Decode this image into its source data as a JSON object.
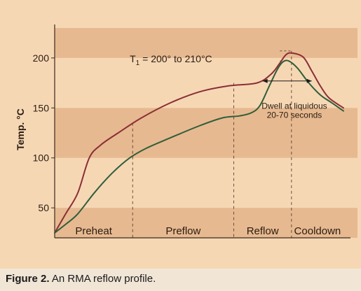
{
  "chart_data": {
    "type": "line",
    "ylabel": "Temp. °C",
    "xlabel": "",
    "yticks": [
      50,
      100,
      150,
      200
    ],
    "ylim": [
      20,
      230
    ],
    "xlim": [
      0,
      100
    ],
    "grid": "horizontal bands",
    "colors": {
      "panel": "#f6d7b4",
      "band": "#e7b990",
      "axis": "#3a2a1e",
      "guide": "#5a4030"
    },
    "series": [
      {
        "color": "#8a2f36",
        "x": [
          0,
          4,
          8,
          12,
          16,
          22,
          30,
          40,
          50,
          60,
          70,
          75,
          78,
          80,
          82,
          86,
          89,
          92,
          95,
          100
        ],
        "y": [
          25,
          45,
          65,
          100,
          113,
          125,
          140,
          155,
          166,
          172,
          175,
          184,
          195,
          203,
          205,
          201,
          187,
          172,
          160,
          150
        ]
      },
      {
        "color": "#2f5e3a",
        "x": [
          0,
          4,
          8,
          14,
          20,
          26,
          32,
          40,
          50,
          58,
          64,
          68,
          71,
          74,
          77,
          79,
          81,
          84,
          88,
          92,
          96,
          100
        ],
        "y": [
          25,
          34,
          44,
          66,
          85,
          100,
          110,
          120,
          132,
          140,
          142,
          145,
          152,
          170,
          188,
          196,
          197,
          190,
          175,
          163,
          155,
          147
        ]
      }
    ],
    "zones": [
      {
        "label": "Preheat",
        "start": 0,
        "end": 27
      },
      {
        "label": "Preflow",
        "start": 27,
        "end": 62
      },
      {
        "label": "Reflow",
        "start": 62,
        "end": 82
      },
      {
        "label": "Cooldown",
        "start": 82,
        "end": 100
      }
    ],
    "annotations": {
      "peak_range": {
        "text_main": "T",
        "text_sub": "1",
        "text_rest": " = 200° to 210°C",
        "y_low": 197,
        "y_high": 207,
        "x_start": 62,
        "x_end": 82
      },
      "dwell_line1": "Dwell at liquidous",
      "dwell_line2": "20-70 seconds"
    }
  },
  "caption": {
    "label": "Figure 2.",
    "text": " An RMA reflow profile."
  }
}
